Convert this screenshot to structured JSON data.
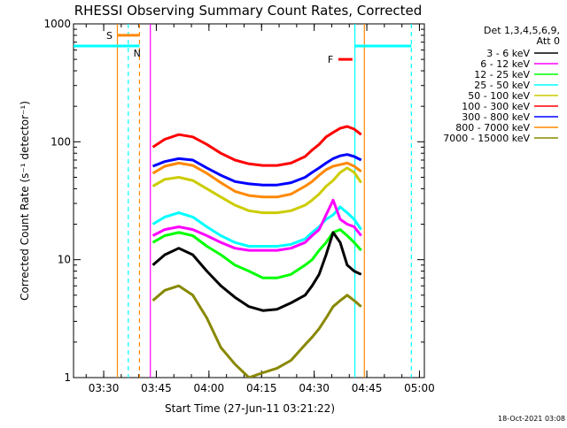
{
  "chart_data": {
    "type": "line",
    "title": "RHESSI Observing Summary Count Rates, Corrected",
    "xlabel": "Start Time (27-Jun-11 03:21:22)",
    "ylabel": "Corrected Count Rate (s⁻¹ detector⁻¹)",
    "x_units": "minutes after 03:21:22",
    "y_scale": "log",
    "xlim": [
      0,
      100
    ],
    "ylim": [
      1,
      1000
    ],
    "x_ticks": [
      {
        "label": "03:30",
        "x": 8.6
      },
      {
        "label": "03:45",
        "x": 23.6
      },
      {
        "label": "04:00",
        "x": 38.6
      },
      {
        "label": "04:15",
        "x": 53.6
      },
      {
        "label": "04:30",
        "x": 68.6
      },
      {
        "label": "04:45",
        "x": 83.6
      },
      {
        "label": "05:00",
        "x": 98.6
      }
    ],
    "y_ticks": [
      {
        "label": "1",
        "y": 1
      },
      {
        "label": "10",
        "y": 10
      },
      {
        "label": "100",
        "y": 100
      },
      {
        "label": "1000",
        "y": 1000
      }
    ],
    "legend": {
      "placement": "right",
      "header": [
        "Det 1,3,4,5,6,9,",
        "Att 0"
      ]
    },
    "series": [
      {
        "name": "3 - 6 keV",
        "color": "#000000",
        "x": [
          22.6,
          26,
          30,
          34,
          38,
          42,
          46,
          50,
          54,
          58,
          62,
          66,
          68,
          70,
          72,
          74,
          76,
          78,
          80,
          82
        ],
        "y": [
          9,
          11,
          12.5,
          11,
          8,
          6,
          4.8,
          4,
          3.7,
          3.8,
          4.3,
          5,
          6,
          7.5,
          11,
          17,
          14,
          9,
          8,
          7.5
        ]
      },
      {
        "name": "6 - 12 keV",
        "color": "#ff00ff",
        "x": [
          22.6,
          26,
          30,
          34,
          38,
          42,
          46,
          50,
          54,
          58,
          62,
          66,
          68,
          70,
          72,
          74,
          76,
          78,
          80,
          82
        ],
        "y": [
          16,
          18,
          19,
          18,
          16,
          14,
          12.5,
          12,
          12,
          12,
          12.5,
          14,
          16,
          18,
          24,
          32,
          22,
          20,
          19,
          16
        ]
      },
      {
        "name": "12 - 25 keV",
        "color": "#00ff00",
        "x": [
          22.6,
          26,
          30,
          34,
          38,
          42,
          46,
          50,
          54,
          58,
          62,
          66,
          68,
          70,
          72,
          74,
          76,
          78,
          80,
          82
        ],
        "y": [
          14,
          16,
          17,
          16,
          13,
          11,
          9,
          8,
          7,
          7,
          7.5,
          9,
          10,
          12,
          14,
          17,
          18,
          16,
          14,
          12
        ]
      },
      {
        "name": "25 - 50 keV",
        "color": "#00ffff",
        "x": [
          22.6,
          26,
          30,
          34,
          38,
          42,
          46,
          50,
          54,
          58,
          62,
          66,
          68,
          70,
          72,
          74,
          76,
          78,
          80,
          82
        ],
        "y": [
          20,
          23,
          25,
          23,
          19,
          16,
          14,
          13,
          13,
          13,
          13.5,
          15,
          17,
          19,
          22,
          24,
          28,
          25,
          22,
          18
        ]
      },
      {
        "name": "50 - 100 keV",
        "color": "#cccc00",
        "x": [
          22.6,
          26,
          30,
          34,
          38,
          42,
          46,
          50,
          54,
          58,
          62,
          66,
          68,
          70,
          72,
          74,
          76,
          78,
          80,
          82
        ],
        "y": [
          42,
          48,
          50,
          47,
          40,
          34,
          29,
          26,
          25,
          25,
          26,
          29,
          32,
          36,
          42,
          47,
          55,
          60,
          55,
          45
        ]
      },
      {
        "name": "100 - 300 keV",
        "color": "#ff0000",
        "x": [
          22.6,
          26,
          30,
          34,
          38,
          42,
          46,
          50,
          54,
          58,
          62,
          66,
          68,
          70,
          72,
          74,
          76,
          78,
          80,
          82
        ],
        "y": [
          90,
          105,
          115,
          110,
          95,
          80,
          70,
          65,
          63,
          63,
          66,
          75,
          85,
          95,
          110,
          120,
          130,
          135,
          128,
          115
        ]
      },
      {
        "name": "300 - 800 keV",
        "color": "#0000ff",
        "x": [
          22.6,
          26,
          30,
          34,
          38,
          42,
          46,
          50,
          54,
          58,
          62,
          66,
          68,
          70,
          72,
          74,
          76,
          78,
          80,
          82
        ],
        "y": [
          62,
          68,
          72,
          70,
          60,
          52,
          46,
          44,
          43,
          43,
          45,
          50,
          55,
          60,
          66,
          72,
          76,
          78,
          75,
          70
        ]
      },
      {
        "name": "800 - 7000 keV",
        "color": "#ff8800",
        "x": [
          22.6,
          26,
          30,
          34,
          38,
          42,
          46,
          50,
          54,
          58,
          62,
          66,
          68,
          70,
          72,
          74,
          76,
          78,
          80,
          82
        ],
        "y": [
          54,
          62,
          66,
          63,
          54,
          45,
          38,
          35,
          34,
          34,
          36,
          42,
          46,
          52,
          58,
          62,
          64,
          66,
          62,
          56
        ]
      },
      {
        "name": "7000 - 15000 keV",
        "color": "#888800",
        "x": [
          22.6,
          26,
          30,
          34,
          38,
          42,
          46,
          50,
          54,
          58,
          62,
          66,
          68,
          70,
          72,
          74,
          76,
          78,
          80,
          82
        ],
        "y": [
          4.5,
          5.5,
          6,
          5,
          3.2,
          1.8,
          1.3,
          1,
          1.1,
          1.2,
          1.4,
          1.9,
          2.2,
          2.6,
          3.2,
          4,
          4.5,
          5,
          4.5,
          4
        ]
      }
    ],
    "annotations": [
      {
        "type": "bar",
        "label": "S",
        "color": "#ff8800",
        "x": [
          12.5,
          18.8
        ],
        "y": 800
      },
      {
        "type": "bar",
        "label": "N",
        "color": "#00ffff",
        "x": [
          15.6,
          18.8
        ],
        "y": 650
      },
      {
        "type": "bar",
        "label": "",
        "color": "#00ffff",
        "x": [
          0,
          15.6
        ],
        "y": 650
      },
      {
        "type": "bar",
        "label": "",
        "color": "#00ffff",
        "x": [
          80.2,
          96.3
        ],
        "y": 650
      },
      {
        "type": "bar",
        "label": "F",
        "color": "#ff0000",
        "x": [
          75.5,
          79.5
        ],
        "y": 500
      }
    ],
    "vlines": [
      {
        "x": 12.5,
        "color": "#ff8800",
        "dash": false
      },
      {
        "x": 18.8,
        "color": "#ff8800",
        "dash": true
      },
      {
        "x": 15.6,
        "color": "#00ffff",
        "dash": true
      },
      {
        "x": 21.9,
        "color": "#ff00ff",
        "dash": false
      },
      {
        "x": 80.2,
        "color": "#00ffff",
        "dash": false
      },
      {
        "x": 82.9,
        "color": "#ff8800",
        "dash": false
      },
      {
        "x": 96.3,
        "color": "#00ffff",
        "dash": true
      }
    ],
    "footer": "18-Oct-2021 03:08"
  }
}
